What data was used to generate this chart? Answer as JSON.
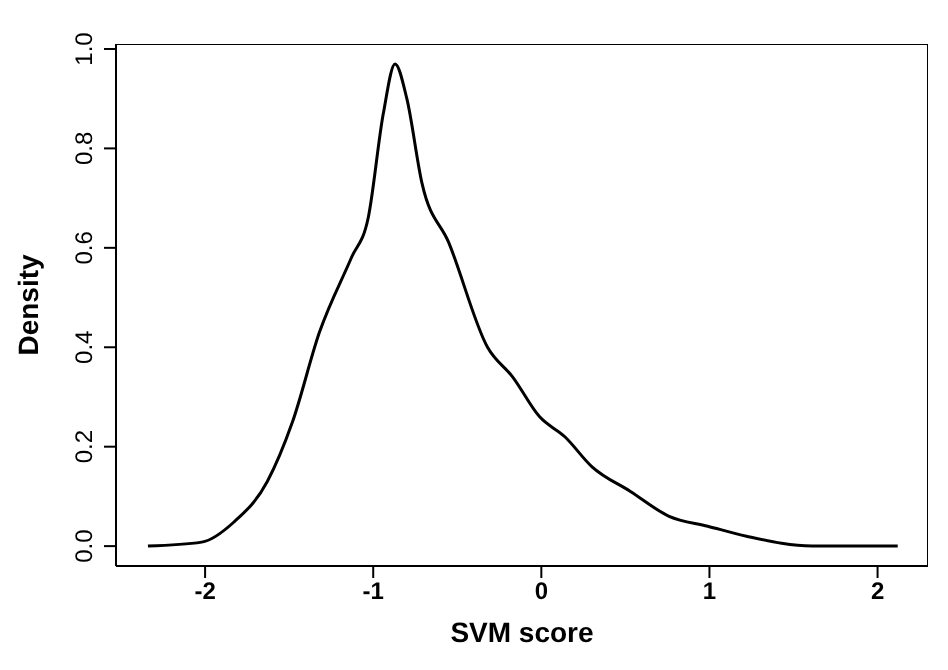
{
  "chart_data": {
    "type": "line",
    "xlabel": "SVM score",
    "ylabel": "Density",
    "color": "#000000",
    "x": [
      -2.34,
      -2.02,
      -1.83,
      -1.63,
      -1.48,
      -1.32,
      -1.13,
      -1.03,
      -0.94,
      -0.87,
      -0.8,
      -0.71,
      -0.55,
      -0.32,
      -0.17,
      -0.01,
      0.14,
      0.3,
      0.53,
      0.76,
      0.99,
      1.22,
      1.61,
      2.12
    ],
    "values": [
      0,
      0.008,
      0.048,
      0.13,
      0.25,
      0.43,
      0.58,
      0.66,
      0.87,
      0.97,
      0.9,
      0.73,
      0.61,
      0.4,
      0.34,
      0.26,
      0.22,
      0.16,
      0.11,
      0.06,
      0.04,
      0.02,
      0,
      0
    ],
    "xlim": [
      -2.53,
      2.3
    ],
    "xticks": [
      -2,
      -1,
      0,
      1,
      2
    ],
    "ylim": [
      -0.04,
      1.01
    ],
    "yticks": [
      {
        "value": 0,
        "label": "0.0"
      },
      {
        "value": 0.2,
        "label": "0.2"
      },
      {
        "value": 0.4,
        "label": "0.4"
      },
      {
        "value": 0.6,
        "label": "0.6"
      },
      {
        "value": 0.8,
        "label": "0.8"
      },
      {
        "value": 1,
        "label": "1.0"
      }
    ],
    "grid": false,
    "legend": false,
    "marker": "none",
    "line_style": "solid"
  }
}
